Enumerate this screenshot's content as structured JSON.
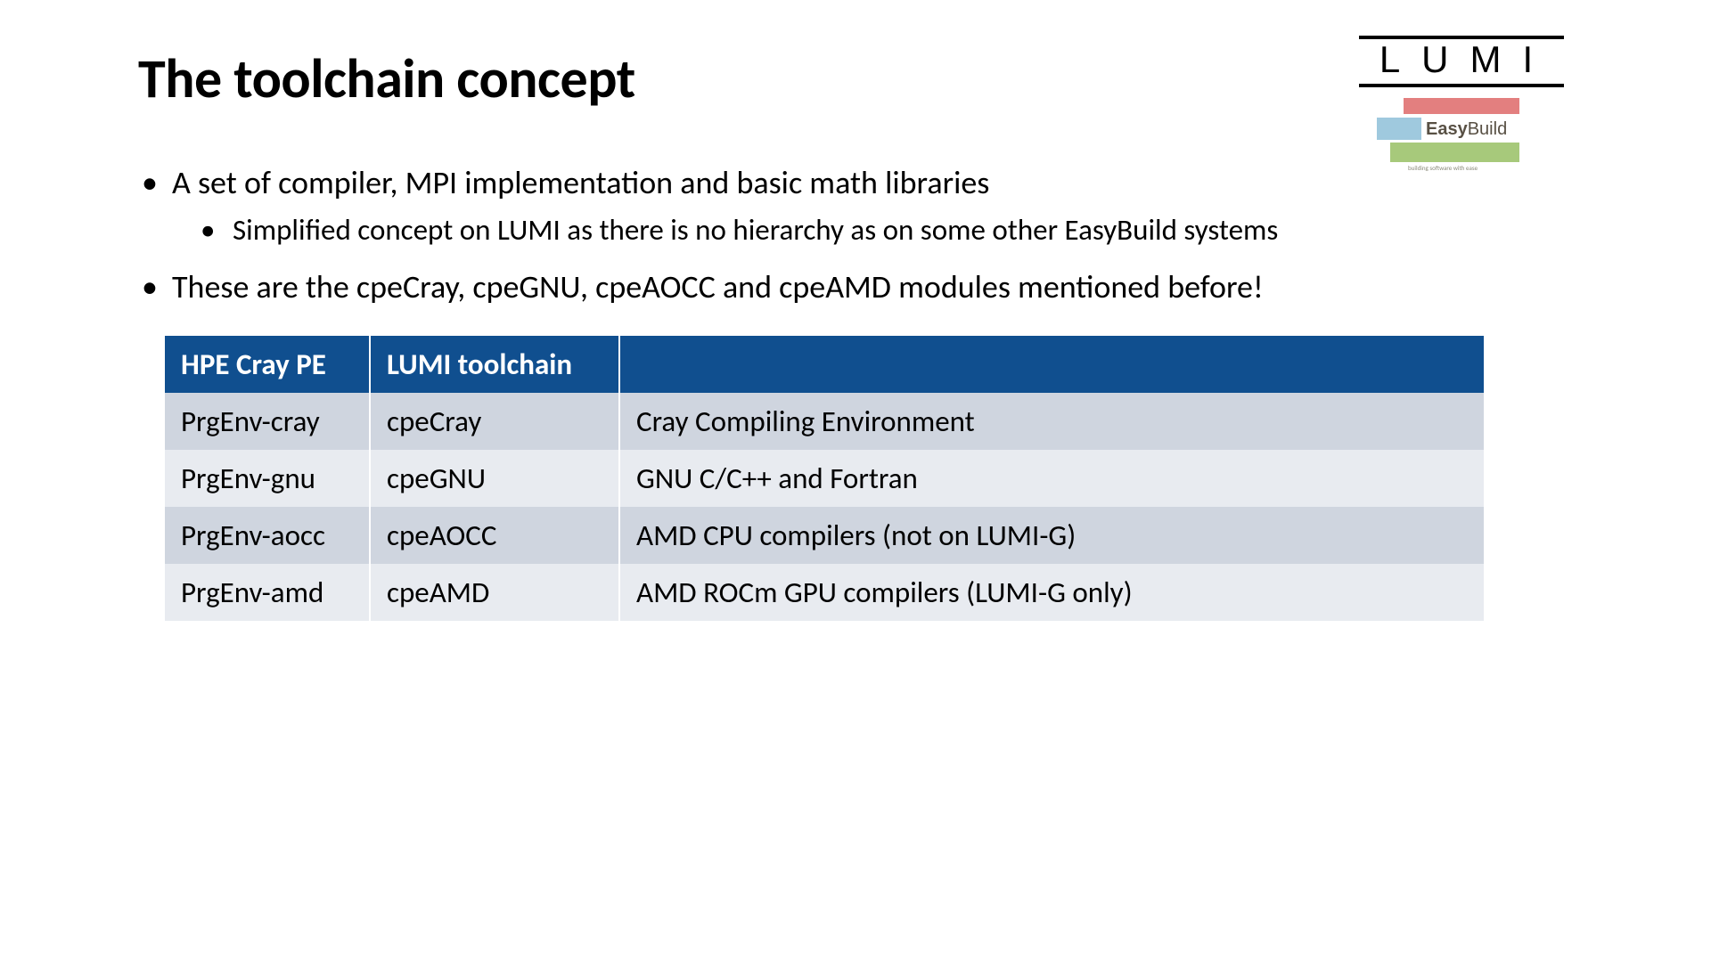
{
  "title": "The toolchain concept",
  "logo": {
    "lumi": "LUMI",
    "easybuild": "Easy",
    "easybuild2": "Build",
    "easybuild_sub": "building software with ease"
  },
  "bullets": {
    "b1": "A set of compiler, MPI implementation and basic math libraries",
    "b1_1": "Simplified concept on LUMI as there is no hierarchy as on some other EasyBuild systems",
    "b2": "These are the cpeCray, cpeGNU, cpeAOCC and cpeAMD modules mentioned before!"
  },
  "table": {
    "header": {
      "c1": "HPE Cray PE",
      "c2": "LUMI toolchain",
      "c3": ""
    },
    "rows": [
      {
        "c1": "PrgEnv-cray",
        "c2": "cpeCray",
        "c3": "Cray Compiling Environment"
      },
      {
        "c1": "PrgEnv-gnu",
        "c2": "cpeGNU",
        "c3": "GNU C/C++ and Fortran"
      },
      {
        "c1": "PrgEnv-aocc",
        "c2": "cpeAOCC",
        "c3": "AMD CPU compilers (not on LUMI-G)"
      },
      {
        "c1": "PrgEnv-amd",
        "c2": "cpeAMD",
        "c3": "AMD ROCm GPU compilers (LUMI-G only)"
      }
    ],
    "colors": {
      "header_bg": "#104f8f",
      "header_fg": "#ffffff",
      "row_odd_bg": "#cfd5df",
      "row_even_bg": "#e8ebf0"
    }
  }
}
